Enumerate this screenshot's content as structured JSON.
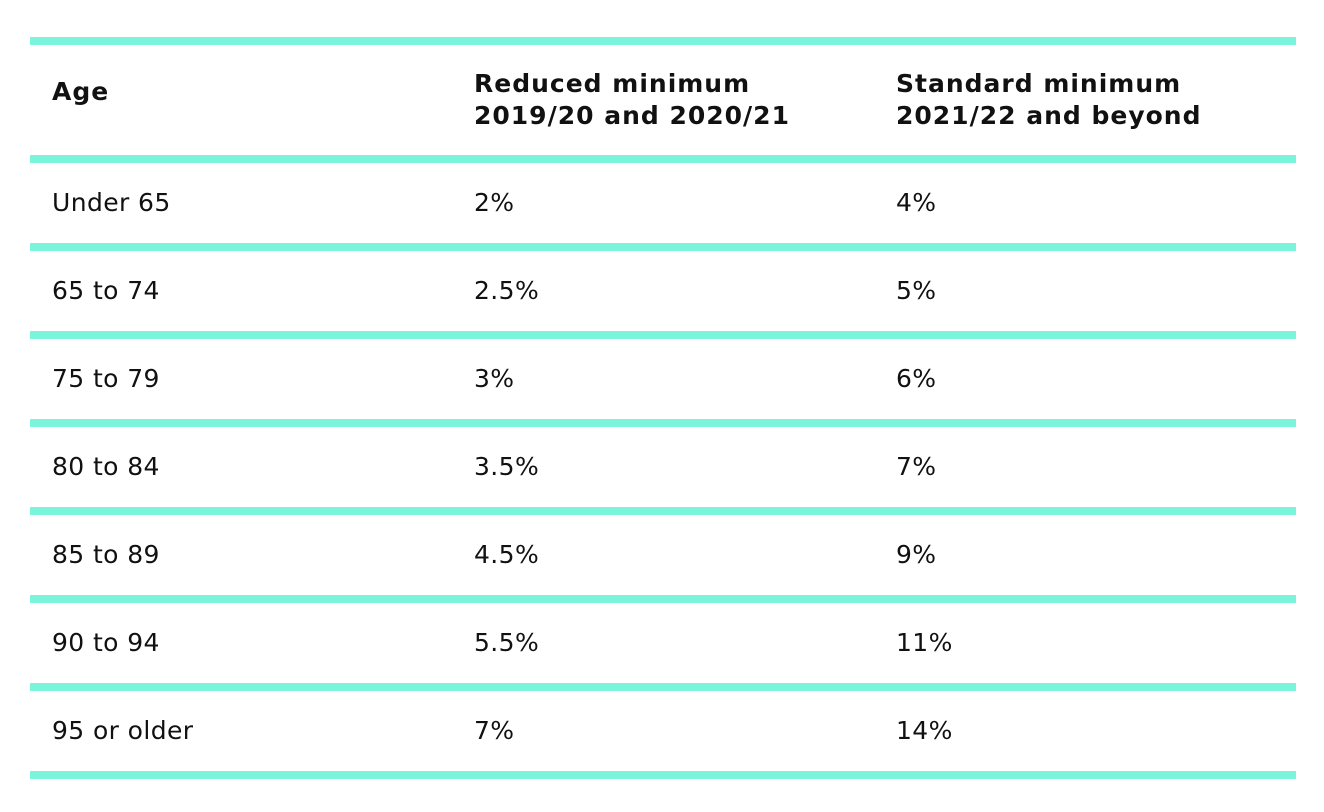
{
  "table": {
    "headers": [
      [
        "Age"
      ],
      [
        "Reduced minimum",
        "2019/20 and 2020/21"
      ],
      [
        "Standard minimum",
        "2021/22 and beyond"
      ]
    ],
    "rows": [
      [
        "Under 65",
        "2%",
        "4%"
      ],
      [
        "65 to 74",
        "2.5%",
        "5%"
      ],
      [
        "75 to 79",
        "3%",
        "6%"
      ],
      [
        "80 to 84",
        "3.5%",
        "7%"
      ],
      [
        "85 to 89",
        "4.5%",
        "9%"
      ],
      [
        "90 to 94",
        "5.5%",
        "11%"
      ],
      [
        "95 or older",
        "7%",
        "14%"
      ]
    ]
  },
  "colors": {
    "rule": "#7af5dc",
    "text": "#111111",
    "background": "#ffffff"
  }
}
